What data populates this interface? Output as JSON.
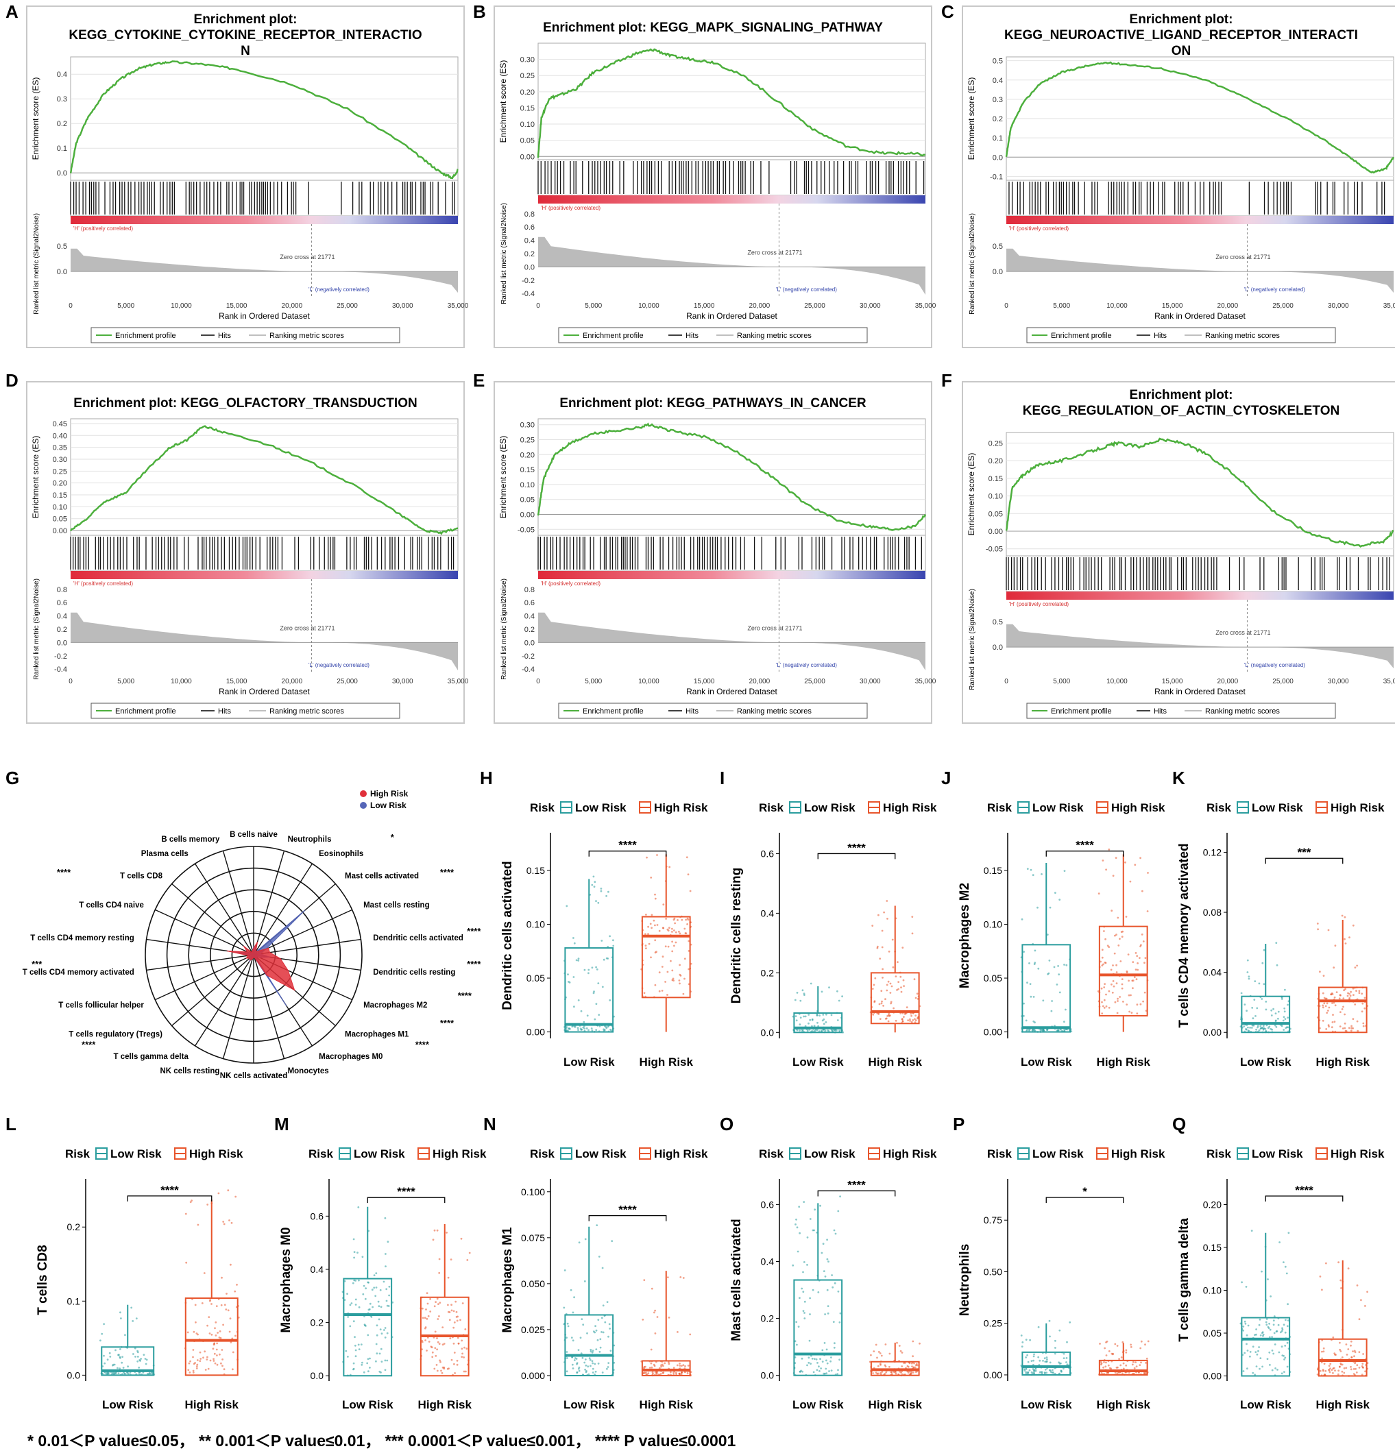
{
  "colors": {
    "green": "#4CAF3C",
    "teal": "#2A9D9E",
    "orange": "#E8552C",
    "red": "#E0303A",
    "blue": "#5566B8",
    "hits": "#111111",
    "gray": "#BBBBBB"
  },
  "gsea_common": {
    "y_axis_label": "Enrichment score (ES)",
    "rank_axis_label": "Ranked list metric (Signal2Noise)",
    "x_axis_label": "Rank in Ordered Dataset",
    "pos_label": "'H' (positively correlated)",
    "neg_label": "'L' (negatively correlated)",
    "zero_cross": "Zero cross at 21771",
    "legend": [
      "Enrichment profile",
      "Hits",
      "Ranking metric scores"
    ]
  },
  "panel_labels": {
    "g": "G",
    "footnote": "* 0.01＜P value≤0.05， ** 0.001＜P value≤0.01， *** 0.0001＜P value≤0.001， **** P value≤0.0001"
  },
  "chart_data": [
    {
      "type": "line",
      "panel": "A",
      "title_lines": [
        "Enrichment plot:",
        "KEGG_CYTOKINE_CYTOKINE_RECEPTOR_INTERACTIO",
        "N"
      ],
      "es_ticks": [
        "0.0",
        "0.1",
        "0.2",
        "0.3",
        "0.4"
      ],
      "es_lim": [
        -0.03,
        0.47
      ],
      "rank_ticks": [
        "0.5",
        "0.0"
      ],
      "rank_tick_vals": [
        0.5,
        0.0
      ],
      "rank_lim": [
        -0.5,
        0.8
      ],
      "x_ticks": [
        "0",
        "5,000",
        "10,000",
        "15,000",
        "20,000",
        "25,000",
        "30,000",
        "35,000"
      ],
      "x_max": 35000,
      "x": [
        0,
        500,
        1500,
        3000,
        4500,
        6000,
        7500,
        9000,
        12000,
        15000,
        20000,
        25000,
        30000,
        32000,
        33500,
        34500,
        35000
      ],
      "es": [
        0,
        0.12,
        0.22,
        0.32,
        0.38,
        0.42,
        0.44,
        0.45,
        0.44,
        0.42,
        0.36,
        0.26,
        0.12,
        0.05,
        0.0,
        -0.02,
        0.01
      ]
    },
    {
      "type": "line",
      "panel": "B",
      "title_lines": [
        "Enrichment plot: KEGG_MAPK_SIGNALING_PATHWAY"
      ],
      "es_ticks": [
        "0.00",
        "0.05",
        "0.10",
        "0.15",
        "0.20",
        "0.25",
        "0.30"
      ],
      "es_lim": [
        -0.01,
        0.35
      ],
      "rank_ticks": [
        "0.8",
        "0.6",
        "0.4",
        "0.2",
        "0.0",
        "-0.2",
        "-0.4"
      ],
      "rank_tick_vals": [
        0.8,
        0.6,
        0.4,
        0.2,
        0.0,
        -0.2,
        -0.4
      ],
      "rank_lim": [
        -0.45,
        0.85
      ],
      "x_ticks": [
        "0",
        "5,000",
        "10,000",
        "15,000",
        "20,000",
        "25,000",
        "30,000",
        "35,000"
      ],
      "x_max": 35000,
      "x": [
        0,
        300,
        1000,
        2000,
        3500,
        5000,
        7000,
        9000,
        10500,
        12000,
        14000,
        16000,
        19000,
        22000,
        25000,
        28000,
        31000,
        33000,
        35000
      ],
      "es": [
        0,
        0.12,
        0.18,
        0.19,
        0.21,
        0.26,
        0.29,
        0.32,
        0.33,
        0.31,
        0.3,
        0.29,
        0.24,
        0.16,
        0.08,
        0.03,
        0.01,
        0.01,
        0.005
      ]
    },
    {
      "type": "line",
      "panel": "C",
      "title_lines": [
        "Enrichment plot:",
        "KEGG_NEUROACTIVE_LIGAND_RECEPTOR_INTERACTI",
        "ON"
      ],
      "es_ticks": [
        "-0.1",
        "0.0",
        "0.1",
        "0.2",
        "0.3",
        "0.4",
        "0.5"
      ],
      "es_lim": [
        -0.12,
        0.52
      ],
      "rank_ticks": [
        "0.5",
        "0.0"
      ],
      "rank_tick_vals": [
        0.5,
        0.0
      ],
      "rank_lim": [
        -0.5,
        0.8
      ],
      "x_ticks": [
        "0",
        "5,000",
        "10,000",
        "15,000",
        "20,000",
        "25,000",
        "30,000",
        "35,000"
      ],
      "x_max": 35000,
      "x": [
        0,
        400,
        1500,
        3000,
        5000,
        7000,
        9000,
        11000,
        14000,
        18000,
        22000,
        26000,
        29000,
        31000,
        33000,
        34300,
        35000
      ],
      "es": [
        0,
        0.15,
        0.28,
        0.38,
        0.44,
        0.47,
        0.49,
        0.48,
        0.46,
        0.4,
        0.3,
        0.18,
        0.08,
        0.0,
        -0.08,
        -0.06,
        0.0
      ]
    },
    {
      "type": "line",
      "panel": "D",
      "title_lines": [
        "Enrichment plot: KEGG_OLFACTORY_TRANSDUCTION"
      ],
      "es_ticks": [
        "0.00",
        "0.05",
        "0.10",
        "0.15",
        "0.20",
        "0.25",
        "0.30",
        "0.35",
        "0.40",
        "0.45"
      ],
      "es_lim": [
        -0.02,
        0.47
      ],
      "rank_ticks": [
        "0.8",
        "0.6",
        "0.4",
        "0.2",
        "0.0",
        "-0.2",
        "-0.4"
      ],
      "rank_tick_vals": [
        0.8,
        0.6,
        0.4,
        0.2,
        0.0,
        -0.2,
        -0.4
      ],
      "rank_lim": [
        -0.45,
        0.85
      ],
      "x_ticks": [
        "0",
        "5,000",
        "10,000",
        "15,000",
        "20,000",
        "25,000",
        "30,000",
        "35,000"
      ],
      "x_max": 35000,
      "x": [
        0,
        1500,
        3000,
        5000,
        7000,
        9000,
        10500,
        12000,
        14000,
        18000,
        22000,
        26000,
        30000,
        32000,
        33500,
        35000
      ],
      "es": [
        0,
        0.05,
        0.12,
        0.16,
        0.26,
        0.35,
        0.38,
        0.44,
        0.41,
        0.36,
        0.28,
        0.18,
        0.06,
        0.0,
        -0.01,
        0.01
      ]
    },
    {
      "type": "line",
      "panel": "E",
      "title_lines": [
        "Enrichment plot: KEGG_PATHWAYS_IN_CANCER"
      ],
      "es_ticks": [
        "-0.05",
        "0.00",
        "0.05",
        "0.10",
        "0.15",
        "0.20",
        "0.25",
        "0.30"
      ],
      "es_lim": [
        -0.07,
        0.32
      ],
      "rank_ticks": [
        "0.8",
        "0.6",
        "0.4",
        "0.2",
        "0.0",
        "-0.2",
        "-0.4"
      ],
      "rank_tick_vals": [
        0.8,
        0.6,
        0.4,
        0.2,
        0.0,
        -0.2,
        -0.4
      ],
      "rank_lim": [
        -0.45,
        0.85
      ],
      "x_ticks": [
        "0",
        "5,000",
        "10,000",
        "15,000",
        "20,000",
        "25,000",
        "30,000",
        "35,000"
      ],
      "x_max": 35000,
      "x": [
        0,
        500,
        1500,
        3000,
        5000,
        7000,
        9000,
        10000,
        12000,
        15000,
        18000,
        21000,
        24000,
        27000,
        30000,
        32000,
        34000,
        35000
      ],
      "es": [
        0,
        0.12,
        0.2,
        0.24,
        0.27,
        0.28,
        0.29,
        0.3,
        0.28,
        0.26,
        0.21,
        0.13,
        0.04,
        -0.02,
        -0.04,
        -0.05,
        -0.04,
        0.0
      ]
    },
    {
      "type": "line",
      "panel": "F",
      "title_lines": [
        "Enrichment plot:",
        "KEGG_REGULATION_OF_ACTIN_CYTOSKELETON"
      ],
      "es_ticks": [
        "-0.05",
        "0.00",
        "0.05",
        "0.10",
        "0.15",
        "0.20",
        "0.25"
      ],
      "es_lim": [
        -0.07,
        0.28
      ],
      "rank_ticks": [
        "0.5",
        "0.0"
      ],
      "rank_tick_vals": [
        0.5,
        0.0
      ],
      "rank_lim": [
        -0.5,
        0.8
      ],
      "x_ticks": [
        "0",
        "5,000",
        "10,000",
        "15,000",
        "20,000",
        "25,000",
        "30,000",
        "35,000"
      ],
      "x_max": 35000,
      "x": [
        0,
        500,
        1500,
        3000,
        5000,
        7000,
        9000,
        10000,
        12000,
        14000,
        16000,
        18000,
        21000,
        24000,
        27000,
        30000,
        32000,
        34000,
        35000
      ],
      "es": [
        0,
        0.12,
        0.16,
        0.19,
        0.2,
        0.22,
        0.24,
        0.25,
        0.24,
        0.26,
        0.25,
        0.22,
        0.15,
        0.06,
        0.0,
        -0.03,
        -0.04,
        -0.03,
        0.0
      ]
    },
    {
      "type": "radar",
      "panel": "G",
      "legend": [
        "High Risk",
        "Low Risk"
      ],
      "categories": [
        "B cells naive",
        "Neutrophils",
        "Eosinophils",
        "Mast cells activated",
        "Mast cells resting",
        "Dendritic cells activated",
        "Dendritic cells resting",
        "Macrophages M2",
        "Macrophages M1",
        "Macrophages M0",
        "Monocytes",
        "NK cells activated",
        "NK cells resting",
        "T cells gamma delta",
        "T cells regulatory (Tregs)",
        "T cells follicular helper",
        "T cells CD4 memory activated",
        "T cells CD4 memory resting",
        "T cells CD4 naive",
        "T cells CD8",
        "Plasma cells",
        "B cells memory"
      ],
      "stars": [
        "",
        "*",
        "",
        "****",
        "",
        "****",
        "****",
        "****",
        "****",
        "****",
        "",
        "",
        "",
        "****",
        "",
        "",
        "***",
        "",
        "",
        "****",
        "",
        ""
      ],
      "high_risk": [
        0.05,
        0.1,
        0.03,
        0.04,
        0.12,
        0.12,
        0.2,
        0.28,
        0.4,
        0.18,
        0.02,
        0.02,
        0.03,
        0.05,
        0.04,
        0.06,
        0.04,
        0.2,
        0.05,
        0.1,
        0.02,
        0.03
      ],
      "low_risk": [
        0.06,
        0.06,
        0.02,
        0.5,
        0.1,
        0.05,
        0.12,
        0.05,
        0.02,
        0.45,
        0.02,
        0.02,
        0.02,
        0.06,
        0.03,
        0.04,
        0.02,
        0.18,
        0.04,
        0.02,
        0.02,
        0.03
      ],
      "r_max": 0.8
    },
    {
      "type": "box",
      "panel": "H",
      "ylabel": "Dendritic cells activated",
      "legend_title": "Risk",
      "groups": [
        "Low Risk",
        "High Risk"
      ],
      "sig": "****",
      "yticks": [
        0.0,
        0.05,
        0.1,
        0.15
      ],
      "ytick_labels": [
        "0.00",
        "0.05",
        "0.10",
        "0.15"
      ],
      "ylim": [
        -0.006,
        0.185
      ],
      "low": {
        "min": 0.0,
        "q1": 0.0,
        "median": 0.007,
        "q3": 0.078,
        "max": 0.142
      },
      "high": {
        "min": 0.0,
        "q1": 0.032,
        "median": 0.089,
        "q3": 0.107,
        "max": 0.165
      },
      "sig_y": 0.168
    },
    {
      "type": "box",
      "panel": "I",
      "ylabel": "Dendritic cells resting",
      "legend_title": "Risk",
      "groups": [
        "Low Risk",
        "High Risk"
      ],
      "sig": "****",
      "yticks": [
        0.0,
        0.2,
        0.4,
        0.6
      ],
      "ytick_labels": [
        "0.0",
        "0.2",
        "0.4",
        "0.6"
      ],
      "ylim": [
        -0.02,
        0.67
      ],
      "low": {
        "min": 0.0,
        "q1": 0.0,
        "median": 0.015,
        "q3": 0.065,
        "max": 0.155
      },
      "high": {
        "min": 0.0,
        "q1": 0.03,
        "median": 0.07,
        "q3": 0.2,
        "max": 0.425
      },
      "sig_y": 0.6
    },
    {
      "type": "box",
      "panel": "J",
      "ylabel": "Macrophages M2",
      "legend_title": "Risk",
      "groups": [
        "Low Risk",
        "High Risk"
      ],
      "sig": "****",
      "yticks": [
        0.0,
        0.05,
        0.1,
        0.15
      ],
      "ytick_labels": [
        "0.00",
        "0.05",
        "0.10",
        "0.15"
      ],
      "ylim": [
        -0.006,
        0.185
      ],
      "low": {
        "min": 0.0,
        "q1": 0.0,
        "median": 0.004,
        "q3": 0.081,
        "max": 0.157
      },
      "high": {
        "min": 0.0,
        "q1": 0.015,
        "median": 0.053,
        "q3": 0.098,
        "max": 0.165
      },
      "sig_y": 0.168
    },
    {
      "type": "box",
      "panel": "K",
      "ylabel": "T cells CD4 memory activated",
      "legend_title": "Risk",
      "groups": [
        "Low Risk",
        "High Risk"
      ],
      "sig": "***",
      "yticks": [
        0.0,
        0.04,
        0.08,
        0.12
      ],
      "ytick_labels": [
        "0.00",
        "0.04",
        "0.08",
        "0.12"
      ],
      "ylim": [
        -0.004,
        0.133
      ],
      "low": {
        "min": 0.0,
        "q1": 0.0,
        "median": 0.006,
        "q3": 0.024,
        "max": 0.059
      },
      "high": {
        "min": 0.0,
        "q1": 0.0,
        "median": 0.021,
        "q3": 0.03,
        "max": 0.075
      },
      "sig_y": 0.116
    },
    {
      "type": "box",
      "panel": "L",
      "ylabel": "T cells CD8",
      "legend_title": "Risk",
      "groups": [
        "Low Risk",
        "High Risk"
      ],
      "sig": "****",
      "yticks": [
        0.0,
        0.1,
        0.2
      ],
      "ytick_labels": [
        "0.0",
        "0.1",
        "0.2"
      ],
      "ylim": [
        -0.008,
        0.265
      ],
      "low": {
        "min": 0.0,
        "q1": 0.0,
        "median": 0.006,
        "q3": 0.038,
        "max": 0.095
      },
      "high": {
        "min": 0.0,
        "q1": 0.0,
        "median": 0.047,
        "q3": 0.104,
        "max": 0.237
      },
      "sig_y": 0.242
    },
    {
      "type": "box",
      "panel": "M",
      "ylabel": "Macrophages M0",
      "legend_title": "Risk",
      "groups": [
        "Low Risk",
        "High Risk"
      ],
      "sig": "****",
      "yticks": [
        0.0,
        0.2,
        0.4,
        0.6
      ],
      "ytick_labels": [
        "0.0",
        "0.2",
        "0.4",
        "0.6"
      ],
      "ylim": [
        -0.02,
        0.74
      ],
      "low": {
        "min": 0.0,
        "q1": 0.0,
        "median": 0.23,
        "q3": 0.365,
        "max": 0.635
      },
      "high": {
        "min": 0.0,
        "q1": 0.0,
        "median": 0.15,
        "q3": 0.295,
        "max": 0.57
      },
      "sig_y": 0.67
    },
    {
      "type": "box",
      "panel": "N",
      "ylabel": "Macrophages M1",
      "legend_title": "Risk",
      "groups": [
        "Low Risk",
        "High Risk"
      ],
      "sig": "****",
      "yticks": [
        0.0,
        0.025,
        0.05,
        0.075,
        0.1
      ],
      "ytick_labels": [
        "0.000",
        "0.025",
        "0.050",
        "0.075",
        "0.100"
      ],
      "ylim": [
        -0.003,
        0.107
      ],
      "low": {
        "min": 0.0,
        "q1": 0.0,
        "median": 0.011,
        "q3": 0.033,
        "max": 0.081
      },
      "high": {
        "min": 0.0,
        "q1": 0.0,
        "median": 0.003,
        "q3": 0.008,
        "max": 0.057
      },
      "sig_y": 0.087
    },
    {
      "type": "box",
      "panel": "O",
      "ylabel": "Mast cells activated",
      "legend_title": "Risk",
      "groups": [
        "Low Risk",
        "High Risk"
      ],
      "sig": "****",
      "yticks": [
        0.0,
        0.2,
        0.4,
        0.6
      ],
      "ytick_labels": [
        "0.0",
        "0.2",
        "0.4",
        "0.6"
      ],
      "ylim": [
        -0.02,
        0.69
      ],
      "low": {
        "min": 0.0,
        "q1": 0.0,
        "median": 0.075,
        "q3": 0.335,
        "max": 0.605
      },
      "high": {
        "min": 0.0,
        "q1": 0.0,
        "median": 0.02,
        "q3": 0.048,
        "max": 0.115
      },
      "sig_y": 0.648
    },
    {
      "type": "box",
      "panel": "P",
      "ylabel": "Neutrophils",
      "legend_title": "Risk",
      "groups": [
        "Low Risk",
        "High Risk"
      ],
      "sig": "*",
      "yticks": [
        0.0,
        0.25,
        0.5,
        0.75
      ],
      "ytick_labels": [
        "0.00",
        "0.25",
        "0.50",
        "0.75"
      ],
      "ylim": [
        -0.03,
        0.95
      ],
      "low": {
        "min": 0.0,
        "q1": 0.0,
        "median": 0.04,
        "q3": 0.11,
        "max": 0.25
      },
      "high": {
        "min": 0.0,
        "q1": 0.0,
        "median": 0.02,
        "q3": 0.07,
        "max": 0.155
      },
      "sig_y": 0.86
    },
    {
      "type": "box",
      "panel": "Q",
      "ylabel": "T cells gamma delta",
      "legend_title": "Risk",
      "groups": [
        "Low Risk",
        "High Risk"
      ],
      "sig": "****",
      "yticks": [
        0.0,
        0.05,
        0.1,
        0.15,
        0.2
      ],
      "ytick_labels": [
        "0.00",
        "0.05",
        "0.10",
        "0.15",
        "0.20"
      ],
      "ylim": [
        -0.006,
        0.23
      ],
      "low": {
        "min": 0.0,
        "q1": 0.0,
        "median": 0.043,
        "q3": 0.068,
        "max": 0.167
      },
      "high": {
        "min": 0.0,
        "q1": 0.0,
        "median": 0.018,
        "q3": 0.043,
        "max": 0.135
      },
      "sig_y": 0.21
    }
  ]
}
